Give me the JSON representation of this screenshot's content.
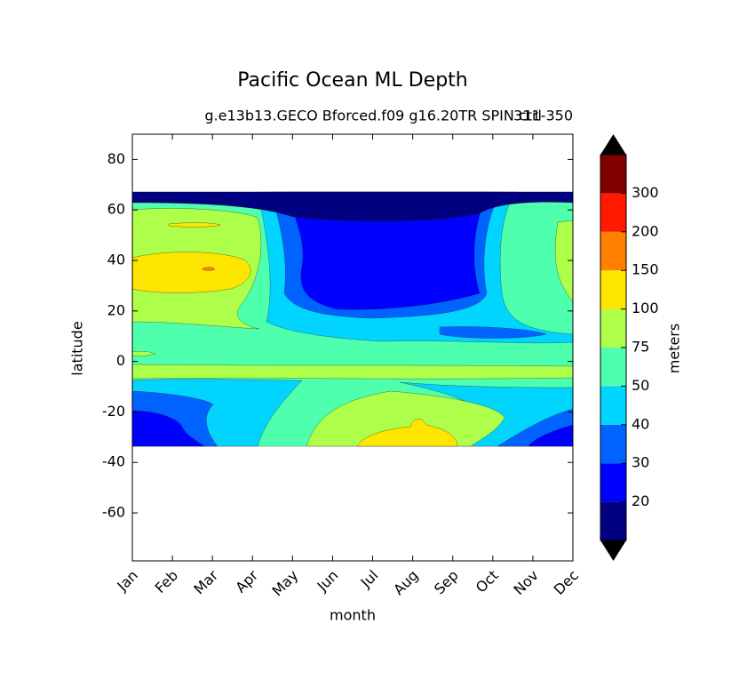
{
  "chart_data": {
    "type": "contour",
    "title": "Pacific Ocean ML Depth",
    "subtitle": "g.e13b13.GECO Bforced.f09 g16.20TR SPIN ctrl",
    "right_title": "311-350",
    "x_label": "month",
    "y_label": "latitude",
    "categories": [
      "Jan",
      "Feb",
      "Mar",
      "Apr",
      "May",
      "Jun",
      "Jul",
      "Aug",
      "Sep",
      "Oct",
      "Nov",
      "Dec"
    ],
    "ylim": [
      -79,
      90
    ],
    "yticks": [
      -60,
      -40,
      -20,
      0,
      20,
      40,
      60,
      80
    ],
    "colorbar": {
      "label": "meters",
      "ticks": [
        20,
        30,
        40,
        50,
        75,
        100,
        150,
        200,
        300
      ],
      "colors": [
        "#000080",
        "#0000ff",
        "#0063ff",
        "#00d4ff",
        "#4effad",
        "#adff4a",
        "#ffe600",
        "#ff8000",
        "#ff1a00",
        "#800000"
      ],
      "extend_color": "#000000"
    }
  }
}
